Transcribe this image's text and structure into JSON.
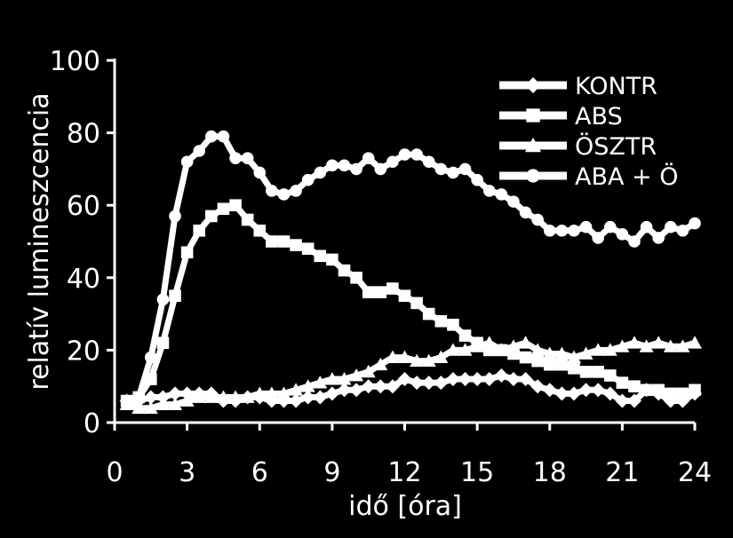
{
  "chart_data": {
    "type": "line",
    "title": "",
    "xlabel": "idő [óra]",
    "ylabel": "relatív lumineszcencia",
    "xlim": [
      0,
      24
    ],
    "ylim": [
      0,
      100
    ],
    "xticks": [
      0,
      3,
      6,
      9,
      12,
      15,
      18,
      21,
      24
    ],
    "yticks": [
      0,
      20,
      40,
      60,
      80,
      100
    ],
    "grid": false,
    "legend_position": "top-right",
    "colors": {
      "background": "#000000",
      "foreground": "#ffffff"
    },
    "series": [
      {
        "name": "KONTR",
        "marker": "diamond",
        "x": [
          0.5,
          1,
          1.5,
          2,
          2.5,
          3,
          3.5,
          4,
          4.5,
          5,
          5.5,
          6,
          6.5,
          7,
          7.5,
          8,
          8.5,
          9,
          9.5,
          10,
          10.5,
          11,
          11.5,
          12,
          12.5,
          13,
          13.5,
          14,
          14.5,
          15,
          15.5,
          16,
          16.5,
          17,
          17.5,
          18,
          18.5,
          19,
          19.5,
          20,
          20.5,
          21,
          21.5,
          22,
          22.5,
          23,
          23.5,
          24
        ],
        "y": [
          6,
          6,
          7,
          7,
          8,
          8,
          8,
          8,
          6,
          6,
          7,
          7,
          6,
          6,
          6,
          7,
          7,
          8,
          9,
          9,
          10,
          10,
          10,
          12,
          11,
          11,
          11,
          12,
          12,
          12,
          12,
          13,
          12,
          12,
          10,
          9,
          8,
          8,
          9,
          9,
          8,
          6,
          6,
          9,
          8,
          6,
          6,
          8
        ]
      },
      {
        "name": "ABS",
        "marker": "square",
        "x": [
          0.5,
          1,
          1.5,
          2,
          2.5,
          3,
          3.5,
          4,
          4.5,
          5,
          5.5,
          6,
          6.5,
          7,
          7.5,
          8,
          8.5,
          9,
          9.5,
          10,
          10.5,
          11,
          11.5,
          12,
          12.5,
          13,
          13.5,
          14,
          14.5,
          15,
          15.5,
          16,
          16.5,
          17,
          17.5,
          18,
          18.5,
          19,
          19.5,
          20,
          20.5,
          21,
          21.5,
          22,
          22.5,
          23,
          23.5,
          24
        ],
        "y": [
          6,
          7,
          12,
          22,
          35,
          47,
          53,
          57,
          59,
          60,
          56,
          53,
          50,
          50,
          49,
          48,
          46,
          45,
          42,
          40,
          36,
          36,
          37,
          35,
          33,
          30,
          28,
          27,
          24,
          22,
          20,
          20,
          19,
          18,
          17,
          16,
          16,
          15,
          14,
          14,
          13,
          11,
          10,
          9,
          9,
          8,
          8,
          9
        ]
      },
      {
        "name": "ÖSZTR",
        "marker": "triangle",
        "x": [
          0.5,
          1,
          1.5,
          2,
          2.5,
          3,
          3.5,
          4,
          4.5,
          5,
          5.5,
          6,
          6.5,
          7,
          7.5,
          8,
          8.5,
          9,
          9.5,
          10,
          10.5,
          11,
          11.5,
          12,
          12.5,
          13,
          13.5,
          14,
          14.5,
          15,
          15.5,
          16,
          16.5,
          17,
          17.5,
          18,
          18.5,
          19,
          19.5,
          20,
          20.5,
          21,
          21.5,
          22,
          22.5,
          23,
          23.5,
          24
        ],
        "y": [
          5,
          4,
          4,
          5,
          5,
          6,
          7,
          7,
          7,
          7,
          7,
          8,
          8,
          8,
          9,
          10,
          11,
          12,
          12,
          13,
          14,
          16,
          18,
          18,
          17,
          17,
          18,
          20,
          20,
          21,
          22,
          20,
          21,
          22,
          20,
          19,
          19,
          18,
          19,
          20,
          20,
          21,
          22,
          21,
          22,
          21,
          21,
          22
        ]
      },
      {
        "name": "ABA + Ö",
        "marker": "circle",
        "x": [
          0.5,
          1,
          1.5,
          2,
          2.5,
          3,
          3.5,
          4,
          4.5,
          5,
          5.5,
          6,
          6.5,
          7,
          7.5,
          8,
          8.5,
          9,
          9.5,
          10,
          10.5,
          11,
          11.5,
          12,
          12.5,
          13,
          13.5,
          14,
          14.5,
          15,
          15.5,
          16,
          16.5,
          17,
          17.5,
          18,
          18.5,
          19,
          19.5,
          20,
          20.5,
          21,
          21.5,
          22,
          22.5,
          23,
          23.5,
          24
        ],
        "y": [
          6,
          7,
          18,
          34,
          57,
          72,
          75,
          79,
          79,
          73,
          73,
          69,
          64,
          63,
          64,
          67,
          69,
          71,
          71,
          70,
          73,
          70,
          72,
          74,
          74,
          72,
          70,
          69,
          70,
          67,
          64,
          63,
          61,
          58,
          56,
          53,
          53,
          53,
          54,
          51,
          54,
          52,
          50,
          54,
          51,
          54,
          53,
          55
        ]
      }
    ]
  }
}
